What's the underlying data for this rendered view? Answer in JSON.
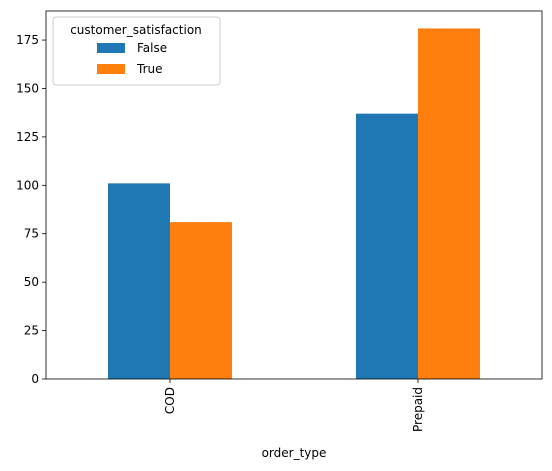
{
  "chart_data": {
    "type": "bar",
    "categories": [
      "COD",
      "Prepaid"
    ],
    "series": [
      {
        "name": "False",
        "values": [
          101,
          137
        ],
        "color": "#1f77b4"
      },
      {
        "name": "True",
        "values": [
          81,
          181
        ],
        "color": "#ff7f0e"
      }
    ],
    "xlabel": "order_type",
    "ylabel": "",
    "title": "",
    "legend_title": "customer_satisfaction",
    "legend_position": "top-left",
    "ylim": [
      0,
      190
    ],
    "yticks": [
      0,
      25,
      50,
      75,
      100,
      125,
      150,
      175
    ],
    "grid": false
  }
}
